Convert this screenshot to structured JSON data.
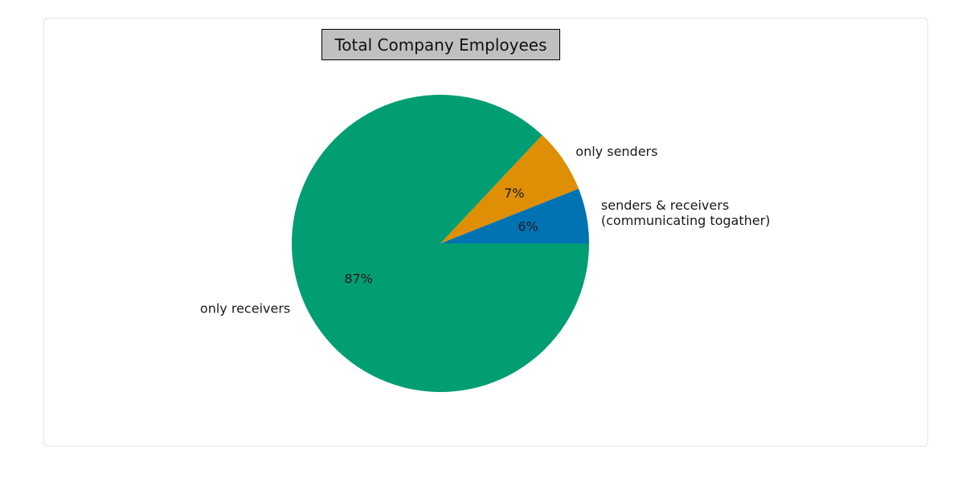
{
  "chart_data": {
    "type": "pie",
    "title": "Total Company Employees",
    "slices": [
      {
        "label_lines": [
          "senders & receivers",
          "(communicating togather)"
        ],
        "value": 6,
        "pct_label": "6%",
        "color": "#0173b2"
      },
      {
        "label_lines": [
          "only senders"
        ],
        "value": 7,
        "pct_label": "7%",
        "color": "#de8f05"
      },
      {
        "label_lines": [
          "only receivers"
        ],
        "value": 87,
        "pct_label": "87%",
        "color": "#029e73"
      }
    ],
    "start_angle": 0,
    "direction": "counterclockwise",
    "legend": "none"
  }
}
